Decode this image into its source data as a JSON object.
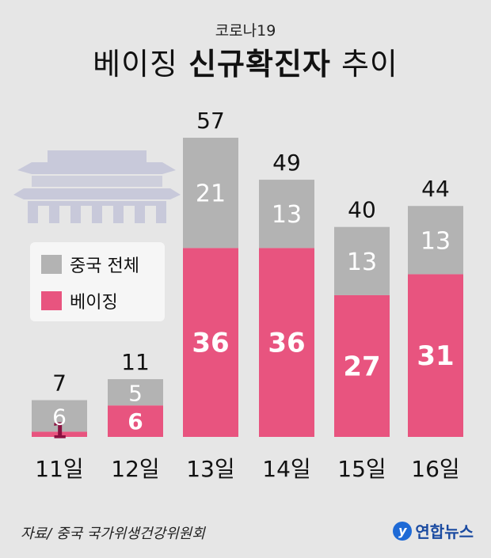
{
  "header": {
    "subtitle": "코로나19",
    "title_normal_1": "베이징 ",
    "title_bold": "신규확진자",
    "title_normal_2": " 추이"
  },
  "colors": {
    "china_total": "#b3b3b3",
    "beijing": "#e8547f",
    "background": "#e6e6e6",
    "palace_icon": "#c8c9da"
  },
  "legend": {
    "china_total": "중국 전체",
    "beijing": "베이징"
  },
  "source": "자료/ 중국 국가위생건강위원회",
  "brand": {
    "name": "연합뉴스",
    "logo_glyph": "y"
  },
  "icons": {
    "decoration": "palace-icon",
    "logo": "yonhap-logo-icon"
  },
  "chart_data": {
    "type": "bar",
    "stacked": true,
    "categories": [
      "11일",
      "12일",
      "13일",
      "14일",
      "15일",
      "16일"
    ],
    "series": [
      {
        "name": "베이징",
        "values": [
          1,
          6,
          36,
          36,
          27,
          31
        ]
      },
      {
        "name": "중국 전체",
        "values": [
          6,
          5,
          21,
          13,
          13,
          13
        ]
      }
    ],
    "totals": [
      7,
      11,
      57,
      49,
      40,
      44
    ],
    "ylim": [
      0,
      57
    ],
    "grid": false,
    "legend_position": "left"
  }
}
